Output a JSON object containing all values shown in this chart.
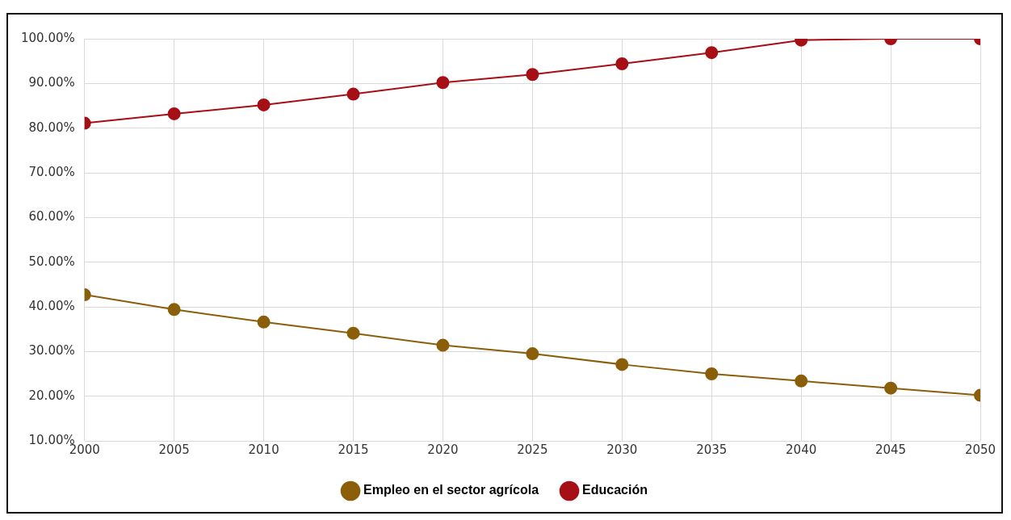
{
  "chart_data": {
    "type": "line",
    "x": [
      2000,
      2005,
      2010,
      2015,
      2020,
      2025,
      2030,
      2035,
      2040,
      2045,
      2050
    ],
    "series": [
      {
        "name": "Empleo en el sector agrícola",
        "color": "#8b5e0a",
        "values": [
          42.7,
          39.4,
          36.6,
          34.1,
          31.4,
          29.5,
          27.1,
          25.0,
          23.4,
          21.8,
          20.2
        ]
      },
      {
        "name": "Educación",
        "color": "#a50f15",
        "values": [
          81.1,
          83.2,
          85.2,
          87.6,
          90.2,
          92.0,
          94.4,
          96.9,
          99.7,
          100,
          100
        ]
      }
    ],
    "xlim": [
      2000,
      2050
    ],
    "xticks": [
      2000,
      2005,
      2010,
      2015,
      2020,
      2025,
      2030,
      2035,
      2040,
      2045,
      2050
    ],
    "ylim": [
      10,
      100
    ],
    "yticks": [
      {
        "value": 10,
        "label": "10.00%"
      },
      {
        "value": 20,
        "label": "20.00%"
      },
      {
        "value": 30,
        "label": "30.00%"
      },
      {
        "value": 40,
        "label": "40.00%"
      },
      {
        "value": 50,
        "label": "50.00%"
      },
      {
        "value": 60,
        "label": "60.00%"
      },
      {
        "value": 70,
        "label": "70.00%"
      },
      {
        "value": 80,
        "label": "80.00%"
      },
      {
        "value": 90,
        "label": "90.00%"
      },
      {
        "value": 100,
        "label": "100.00%"
      }
    ],
    "grid": true,
    "legend": "bottom",
    "marker": "circle",
    "line_style": "solid"
  }
}
